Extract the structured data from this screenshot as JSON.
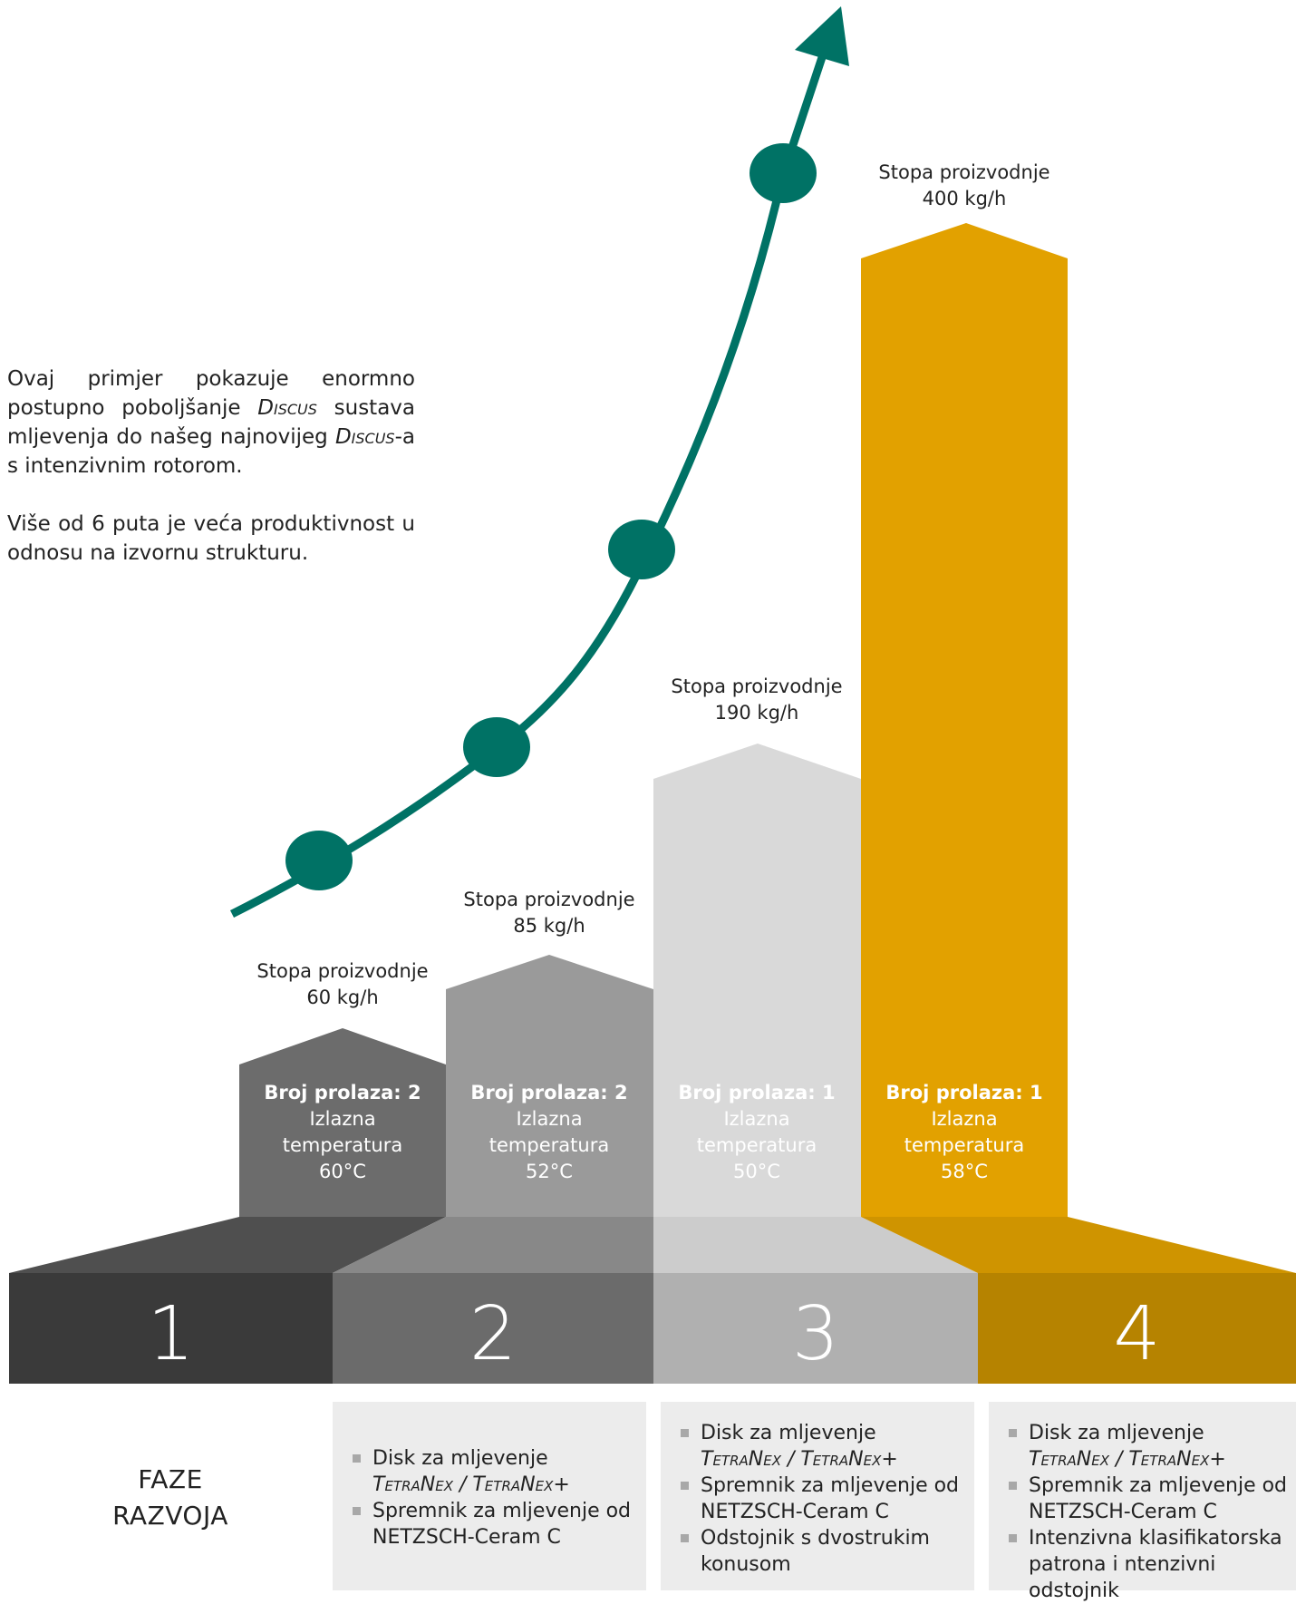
{
  "intro": {
    "p1_a": "Ovaj primjer pokazuje enormno postupno poboljšanje ",
    "p1_discus1": "Discus",
    "p1_b": " sustava mljevenja do našeg najnovijeg ",
    "p1_discus2": "Discus",
    "p1_c": "-a s intenzivnim rotorom.",
    "p2": "Više od 6 puta je veća produktivnost u odnosu na izvornu strukturu."
  },
  "phases": [
    {
      "number": "1",
      "rate_label": "Stopa proizvodnje",
      "rate_value": "60 kg/h",
      "passes": "Broj prolaza: 2",
      "temp_label_1": "Izlazna",
      "temp_label_2": "temperatura",
      "temp_value": "60°C"
    },
    {
      "number": "2",
      "rate_label": "Stopa proizvodnje",
      "rate_value": "85 kg/h",
      "passes": "Broj prolaza: 2",
      "temp_label_1": "Izlazna",
      "temp_label_2": "temperatura",
      "temp_value": "52°C"
    },
    {
      "number": "3",
      "rate_label": "Stopa proizvodnje",
      "rate_value": "190 kg/h",
      "passes": "Broj prolaza: 1",
      "temp_label_1": "Izlazna",
      "temp_label_2": "temperatura",
      "temp_value": "50°C"
    },
    {
      "number": "4",
      "rate_label": "Stopa proizvodnje",
      "rate_value": "400 kg/h",
      "passes": "Broj prolaza: 1",
      "temp_label_1": "Izlazna",
      "temp_label_2": "temperatura",
      "temp_value": "58°C"
    }
  ],
  "faze_label": {
    "line1": "FAZE",
    "line2": "RAZVOJA"
  },
  "features": {
    "phase2": [
      {
        "line1": "Disk za mljevenje",
        "line2": "TetraNex / TetraNex+"
      },
      {
        "line1": "Spremnik za mljevenje od",
        "line2": "NETZSCH-Ceram C"
      }
    ],
    "phase3": [
      {
        "line1": "Disk za mljevenje",
        "line2": "TetraNex / TetraNex+"
      },
      {
        "line1": "Spremnik za mljevenje od",
        "line2": "NETZSCH-Ceram C"
      },
      {
        "line1": "Odstojnik s dvostrukim",
        "line2": "konusom"
      }
    ],
    "phase4": [
      {
        "line1": "Disk za mljevenje",
        "line2": "TetraNex / TetraNex+"
      },
      {
        "line1": "Spremnik za mljevenje od",
        "line2": "NETZSCH-Ceram C"
      },
      {
        "line1": "Intenzivna klasifikatorska",
        "line2": "patrona i ntenzivni odstojnik"
      }
    ]
  },
  "colors": {
    "curve": "#007265",
    "phase1_bar": "#6c6c6c",
    "phase1_base": "#3a3a3a",
    "phase2_bar": "#9a9a9a",
    "phase2_base": "#6b6b6b",
    "phase3_bar": "#d9d9d9",
    "phase3_base": "#b0b0b0",
    "phase4_bar": "#e2a100",
    "phase4_base": "#b68300"
  }
}
